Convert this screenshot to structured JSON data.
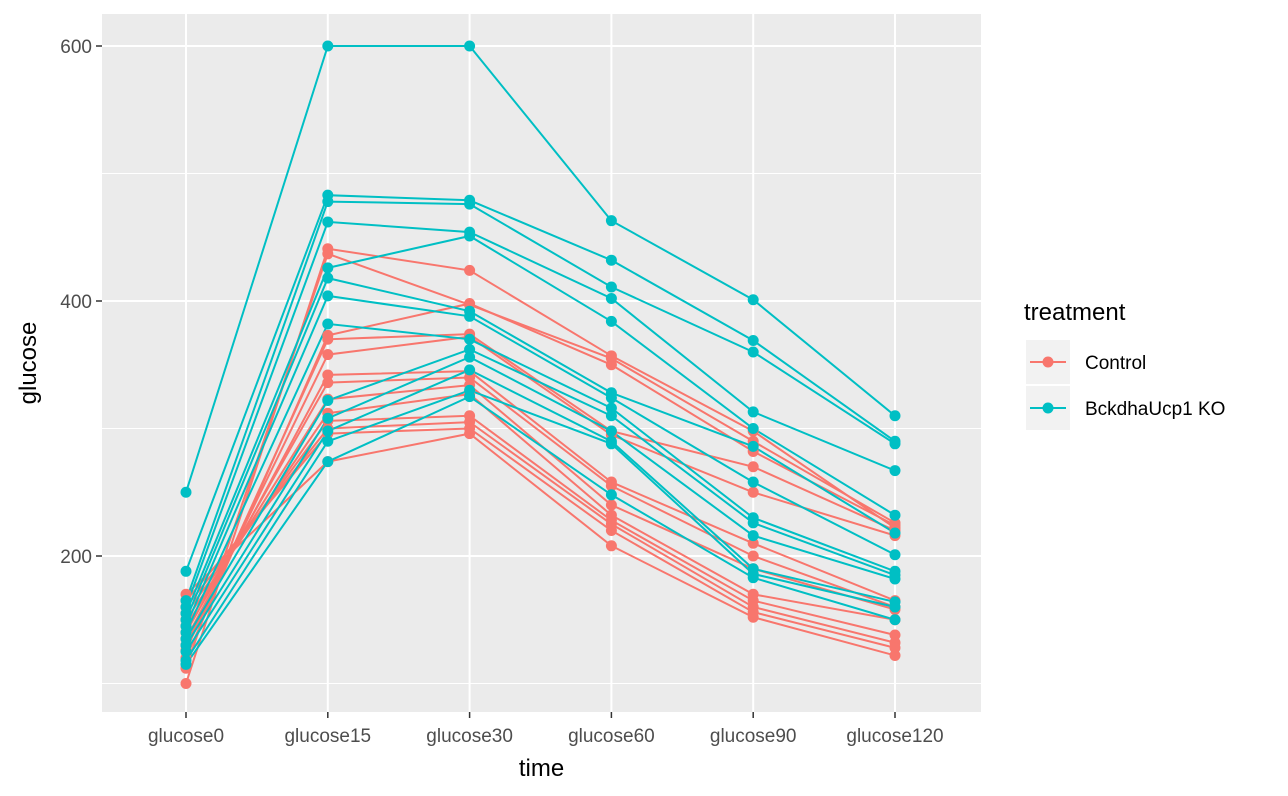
{
  "chart_data": {
    "type": "line",
    "xlabel": "time",
    "ylabel": "glucose",
    "categories": [
      "glucose0",
      "glucose15",
      "glucose30",
      "glucose60",
      "glucose90",
      "glucose120"
    ],
    "y_ticks": [
      200,
      400,
      600
    ],
    "ylim": [
      74,
      622
    ],
    "grid": true,
    "legend": {
      "title": "treatment",
      "position": "right",
      "entries": [
        {
          "label": "Control",
          "color": "#F8766D"
        },
        {
          "label": "BckdhaUcp1 KO",
          "color": "#00BFC4"
        }
      ]
    },
    "series": [
      {
        "group": "Control",
        "values": [
          100,
          441,
          424,
          357,
          298,
          222
        ]
      },
      {
        "group": "Control",
        "values": [
          112,
          437,
          397,
          355,
          290,
          226
        ]
      },
      {
        "group": "Control",
        "values": [
          120,
          373,
          398,
          350,
          282,
          224
        ]
      },
      {
        "group": "Control",
        "values": [
          126,
          370,
          374,
          298,
          270,
          220
        ]
      },
      {
        "group": "Control",
        "values": [
          130,
          358,
          372,
          295,
          250,
          216
        ]
      },
      {
        "group": "Control",
        "values": [
          135,
          342,
          345,
          258,
          210,
          165
        ]
      },
      {
        "group": "Control",
        "values": [
          140,
          336,
          340,
          255,
          200,
          160
        ]
      },
      {
        "group": "Control",
        "values": [
          145,
          323,
          334,
          240,
          190,
          158
        ]
      },
      {
        "group": "Control",
        "values": [
          150,
          312,
          327,
          232,
          170,
          150
        ]
      },
      {
        "group": "Control",
        "values": [
          155,
          306,
          310,
          228,
          165,
          138
        ]
      },
      {
        "group": "Control",
        "values": [
          160,
          300,
          305,
          225,
          160,
          132
        ]
      },
      {
        "group": "Control",
        "values": [
          165,
          296,
          300,
          220,
          156,
          128
        ]
      },
      {
        "group": "Control",
        "values": [
          170,
          274,
          296,
          208,
          152,
          122
        ]
      },
      {
        "group": "KO",
        "values": [
          250,
          600,
          600,
          463,
          401,
          310
        ]
      },
      {
        "group": "KO",
        "values": [
          188,
          483,
          479,
          432,
          369,
          290
        ]
      },
      {
        "group": "KO",
        "values": [
          165,
          478,
          476,
          411,
          360,
          288
        ]
      },
      {
        "group": "KO",
        "values": [
          160,
          462,
          454,
          402,
          313,
          267
        ]
      },
      {
        "group": "KO",
        "values": [
          155,
          426,
          451,
          384,
          300,
          232
        ]
      },
      {
        "group": "KO",
        "values": [
          150,
          418,
          392,
          328,
          286,
          218
        ]
      },
      {
        "group": "KO",
        "values": [
          145,
          404,
          388,
          324,
          258,
          201
        ]
      },
      {
        "group": "KO",
        "values": [
          140,
          382,
          370,
          316,
          230,
          188
        ]
      },
      {
        "group": "KO",
        "values": [
          135,
          322,
          362,
          310,
          226,
          185
        ]
      },
      {
        "group": "KO",
        "values": [
          130,
          308,
          356,
          298,
          216,
          182
        ]
      },
      {
        "group": "KO",
        "values": [
          125,
          298,
          346,
          290,
          190,
          164
        ]
      },
      {
        "group": "KO",
        "values": [
          118,
          290,
          330,
          288,
          186,
          160
        ]
      },
      {
        "group": "KO",
        "values": [
          115,
          274,
          325,
          248,
          183,
          150
        ]
      }
    ]
  }
}
